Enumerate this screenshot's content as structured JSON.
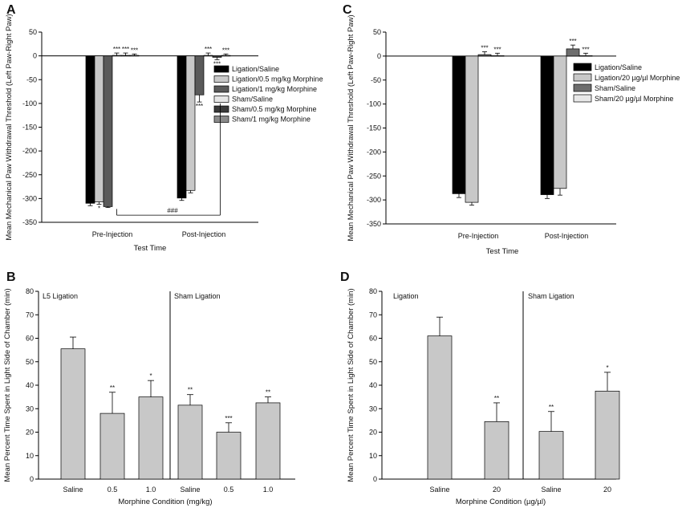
{
  "figure": {
    "panels": [
      "A",
      "C",
      "B",
      "D"
    ]
  },
  "chart_data": [
    {
      "id": "A",
      "type": "bar",
      "panel_label": "A",
      "ylabel": "Mean Mechanical Paw Withdrawal Threshold (Left Paw-Right Paw)",
      "xlabel": "Test Time",
      "ylim": [
        -350,
        50
      ],
      "yticks": [
        50,
        0,
        -50,
        -100,
        -150,
        -200,
        -250,
        -300,
        -350
      ],
      "categories": [
        "Pre-Injection",
        "Post-Injection"
      ],
      "legend_position": "top-right",
      "series": [
        {
          "name": "Ligation/Saline",
          "color": "#000000",
          "values": [
            -310,
            -299
          ],
          "errors": [
            5,
            5
          ],
          "labels": [
            "",
            ""
          ]
        },
        {
          "name": "Ligation/0.5 mg/kg Morphine",
          "color": "#c8c8c8",
          "values": [
            -307,
            -283
          ],
          "errors": [
            5,
            5
          ],
          "labels": [
            "*",
            ""
          ]
        },
        {
          "name": "Ligation/1 mg/kg Morphine",
          "color": "#5a5a5a",
          "values": [
            -317,
            -82
          ],
          "errors": [
            2,
            15
          ],
          "labels": [
            "",
            "***"
          ]
        },
        {
          "name": "Sham/Saline",
          "color": "#e6e6e6",
          "values": [
            1,
            1
          ],
          "errors": [
            5,
            5
          ],
          "labels": [
            "***",
            "***"
          ]
        },
        {
          "name": "Sham/0.5 mg/kg Morphine",
          "color": "#3a3a3a",
          "values": [
            1,
            -3
          ],
          "errors": [
            5,
            5
          ],
          "labels": [
            "***",
            "***"
          ]
        },
        {
          "name": "Sham/1 mg/kg Morphine",
          "color": "#8a8a8a",
          "values": [
            1,
            1
          ],
          "errors": [
            3,
            3
          ],
          "labels": [
            "***",
            "***"
          ]
        }
      ],
      "annotations": [
        "###"
      ]
    },
    {
      "id": "C",
      "type": "bar",
      "panel_label": "C",
      "ylabel": "Mean Mechanical Paw Withdrawal Threshold (Left Paw-Right Paw)",
      "xlabel": "Test Time",
      "ylim": [
        -350,
        50
      ],
      "yticks": [
        50,
        0,
        -50,
        -100,
        -150,
        -200,
        -250,
        -300,
        -350
      ],
      "categories": [
        "Pre-Injection",
        "Post-Injection"
      ],
      "legend_position": "top-right",
      "series": [
        {
          "name": "Ligation/Saline",
          "color": "#000000",
          "values": [
            -287,
            -289
          ],
          "errors": [
            8,
            8
          ],
          "labels": [
            "",
            ""
          ]
        },
        {
          "name": "Ligation/20 µg/µl Morphine",
          "color": "#c8c8c8",
          "values": [
            -305,
            -276
          ],
          "errors": [
            6,
            14
          ],
          "labels": [
            "",
            ""
          ]
        },
        {
          "name": "Sham/Saline",
          "color": "#6e6e6e",
          "values": [
            3,
            15
          ],
          "errors": [
            6,
            8
          ],
          "labels": [
            "***",
            "***"
          ]
        },
        {
          "name": "Sham/20 µg/µl Morphine",
          "color": "#e8e8e8",
          "values": [
            1,
            1
          ],
          "errors": [
            5,
            5
          ],
          "labels": [
            "***",
            "***"
          ]
        }
      ]
    },
    {
      "id": "B",
      "type": "bar",
      "panel_label": "B",
      "ylabel": "Mean Percent Time Spent in Light Side of Chamber (min)",
      "xlabel": "Morphine Condition (mg/kg)",
      "ylim": [
        0,
        80
      ],
      "yticks": [
        0,
        10,
        20,
        30,
        40,
        50,
        60,
        70,
        80
      ],
      "categories": [
        "Saline",
        "0.5",
        "1.0",
        "Saline",
        "0.5",
        "1.0"
      ],
      "group_labels": [
        "L5 Ligation",
        "Sham Ligation"
      ],
      "values": [
        55.5,
        28,
        35,
        31.5,
        20,
        32.5
      ],
      "errors": [
        5,
        9,
        7,
        4.5,
        4,
        2.5
      ],
      "labels": [
        "",
        "**",
        "*",
        "**",
        "***",
        "**"
      ]
    },
    {
      "id": "D",
      "type": "bar",
      "panel_label": "D",
      "ylabel": "Mean Percent Time Spent in Light Side of Chamber (min)",
      "xlabel": "Morphine Condition (µg/µl)",
      "ylim": [
        0,
        80
      ],
      "yticks": [
        0,
        10,
        20,
        30,
        40,
        50,
        60,
        70,
        80
      ],
      "categories": [
        "Saline",
        "20",
        "Saline",
        "20"
      ],
      "group_labels": [
        "Ligation",
        "Sham Ligation"
      ],
      "values": [
        61,
        24.5,
        20.3,
        37.5
      ],
      "errors": [
        8,
        8,
        8.5,
        8
      ],
      "labels": [
        "",
        "**",
        "**",
        "*"
      ]
    }
  ]
}
